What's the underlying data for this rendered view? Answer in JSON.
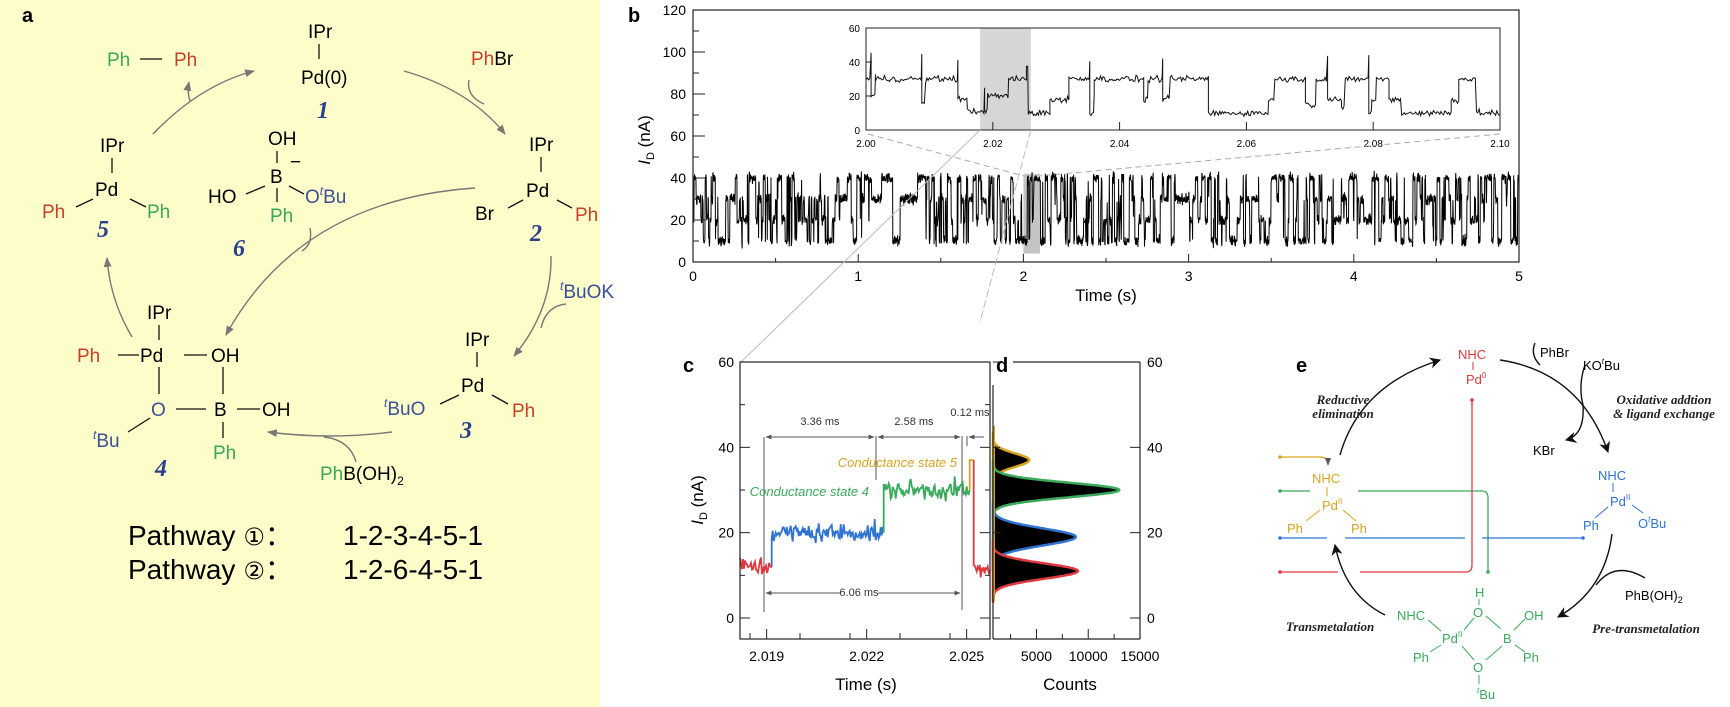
{
  "colors": {
    "panel_a_background": "#fdfdca",
    "ph_red": "#c8402a",
    "ph_green": "#3aa856",
    "tbu_blue": "#3a4f9a",
    "number_blue": "#2b3f8e",
    "state_red": "#e0393e",
    "state_blue": "#2f74d0",
    "state_green": "#3aaa5c",
    "state_gold": "#d9a520"
  },
  "panel_a": {
    "label": "a",
    "c1": {
      "ligand": "IPr",
      "metal": "Pd(0)",
      "number": "1"
    },
    "ph_ph": {
      "left": "Ph",
      "right": "Ph"
    },
    "phbr": {
      "ph": "Ph",
      "br": "Br"
    },
    "c2": {
      "ligand": "IPr",
      "metal": "Pd",
      "br": "Br",
      "ph": "Ph",
      "number": "2"
    },
    "tbuok": {
      "sup": "t",
      "text": "BuOK"
    },
    "c3": {
      "ligand": "IPr",
      "metal": "Pd",
      "tbuo_sup": "t",
      "tbuo": "BuO",
      "ph": "Ph",
      "number": "3"
    },
    "phboh2": {
      "ph": "Ph",
      "b": "B(OH)",
      "sub": "2"
    },
    "c4": {
      "ligand": "IPr",
      "ph": "Ph",
      "metal": "Pd",
      "oh1": "OH",
      "o": "O",
      "b": "B",
      "oh2": "OH",
      "tbu_sup": "t",
      "tbu": "Bu",
      "ph2": "Ph",
      "number": "4"
    },
    "c5": {
      "ligand": "IPr",
      "metal": "Pd",
      "ph_left": "Ph",
      "ph_right": "Ph",
      "number": "5"
    },
    "c6": {
      "oh": "OH",
      "b": "B",
      "charge": "−",
      "ho": "HO",
      "o": "O",
      "tbu_sup": "t",
      "tbu": "Bu",
      "ph": "Ph",
      "number": "6"
    },
    "pathways": [
      {
        "label": "Pathway",
        "circle": "①",
        "sep": "：",
        "route": "1-2-3-4-5-1"
      },
      {
        "label": "Pathway",
        "circle": "②",
        "sep": "：",
        "route": "1-2-6-4-5-1"
      }
    ]
  },
  "panel_b": {
    "label": "b"
  },
  "panel_c": {
    "label": "c",
    "durations": {
      "d1": "3.36 ms",
      "d2": "2.58 ms",
      "d3": "0.12 ms",
      "total": "6.06 ms"
    },
    "state4": "Conductance state 4",
    "state5": "Conductance state 5"
  },
  "panel_d": {
    "label": "d"
  },
  "panel_e": {
    "label": "e",
    "pd0": {
      "ligand": "NHC",
      "metal": "Pd",
      "ox": "0"
    },
    "blue": {
      "ligand": "NHC",
      "metal": "Pd",
      "ox": "II",
      "ph": "Ph",
      "o": "O",
      "sup": "t",
      "bu": "Bu"
    },
    "gold": {
      "ligand": "NHC",
      "metal": "Pd",
      "ox": "II",
      "ph1": "Ph",
      "ph2": "Ph"
    },
    "green": {
      "ligand": "NHC",
      "metal": "Pd",
      "ox": "II",
      "h": "H",
      "o1": "O",
      "b": "B",
      "oh": "OH",
      "ph1": "Ph",
      "ph2": "Ph",
      "o2": "O",
      "sup": "t",
      "bu": "Bu"
    },
    "reagents": {
      "phbr": "PhBr",
      "kotbu_k": "KO",
      "kotbu_sup": "t",
      "kotbu_bu": "Bu",
      "kbr": "KBr",
      "phboh2": "PhB(OH)",
      "phboh2_sub": "2"
    },
    "steps": {
      "reductive_1": "Reductive",
      "reductive_2": "elimination",
      "oxidative_1": "Oxidative addtion",
      "oxidative_2": "& ligand exchange",
      "transmetalation": "Transmetalation",
      "pre_transmetalation": "Pre-transmetalation"
    }
  },
  "chart_data": [
    {
      "id": "b-main",
      "type": "line",
      "xlabel": "Time (s)",
      "ylabel_main": "I",
      "ylabel_sub": "D",
      "ylabel_unit": " (nA)",
      "xlim": [
        0,
        5
      ],
      "ylim": [
        0,
        120
      ],
      "xticks": [
        "0",
        "1",
        "2",
        "3",
        "4",
        "5"
      ],
      "yticks": [
        "0",
        "20",
        "40",
        "60",
        "80",
        "100",
        "120"
      ],
      "current_levels_nA": [
        10,
        20,
        30,
        40
      ],
      "highlight_x": [
        2.0,
        2.1
      ],
      "grid": false
    },
    {
      "id": "b-inset",
      "type": "line",
      "xlim": [
        2.0,
        2.1
      ],
      "ylim": [
        0,
        60
      ],
      "xticks": [
        "2.00",
        "2.02",
        "2.04",
        "2.06",
        "2.08",
        "2.10"
      ],
      "yticks": [
        "0",
        "20",
        "40",
        "60"
      ],
      "highlight_x": [
        2.018,
        2.026
      ],
      "steps": [
        [
          2.0,
          30
        ],
        [
          2.0008,
          20
        ],
        [
          2.0015,
          30
        ],
        [
          2.0088,
          15
        ],
        [
          2.0094,
          30
        ],
        [
          2.0145,
          18
        ],
        [
          2.016,
          11
        ],
        [
          2.0187,
          12
        ],
        [
          2.0192,
          20
        ],
        [
          2.0225,
          30
        ],
        [
          2.0253,
          37
        ],
        [
          2.0256,
          10
        ],
        [
          2.029,
          18
        ],
        [
          2.032,
          30
        ],
        [
          2.0353,
          10
        ],
        [
          2.036,
          30
        ],
        [
          2.0438,
          18
        ],
        [
          2.0445,
          30
        ],
        [
          2.0468,
          18
        ],
        [
          2.048,
          30
        ],
        [
          2.054,
          10
        ],
        [
          2.0635,
          18
        ],
        [
          2.0645,
          30
        ],
        [
          2.0693,
          15
        ],
        [
          2.071,
          30
        ],
        [
          2.0728,
          18
        ],
        [
          2.075,
          12
        ],
        [
          2.0756,
          30
        ],
        [
          2.0793,
          10
        ],
        [
          2.0798,
          18
        ],
        [
          2.0805,
          30
        ],
        [
          2.0825,
          18
        ],
        [
          2.0845,
          10
        ],
        [
          2.0923,
          18
        ],
        [
          2.0935,
          30
        ],
        [
          2.0963,
          10
        ],
        [
          2.1,
          10
        ]
      ],
      "grid": false
    },
    {
      "id": "c",
      "type": "line",
      "xlabel": "Time (s)",
      "ylabel_main": "I",
      "ylabel_sub": "D",
      "ylabel_unit": " (nA)",
      "xlim": [
        2.0182,
        2.0257
      ],
      "ylim": [
        -5,
        60
      ],
      "xticks": [
        {
          "v": 2.019,
          "label": "2.019"
        },
        {
          "v": 2.022,
          "label": "2.022"
        },
        {
          "v": 2.025,
          "label": "2.025"
        }
      ],
      "yticks": [
        "0",
        "20",
        "40",
        "60"
      ],
      "segments": [
        {
          "from": 2.0182,
          "to": 2.01915,
          "level": 12,
          "color": "#e0393e"
        },
        {
          "from": 2.01915,
          "to": 2.02251,
          "level": 20,
          "color": "#2f74d0"
        },
        {
          "from": 2.02251,
          "to": 2.02509,
          "level": 30,
          "color": "#3aaa5c"
        },
        {
          "from": 2.02509,
          "to": 2.02521,
          "level": 37,
          "color": "#d9a520"
        },
        {
          "from": 2.02521,
          "to": 2.0257,
          "level": 11,
          "color": "#e0393e"
        }
      ],
      "grid": false
    },
    {
      "id": "d",
      "type": "area",
      "xlabel": "Counts",
      "xlim": [
        800,
        15000
      ],
      "ylim": [
        -5,
        60
      ],
      "xticks": [
        "5000",
        "10000",
        "15000"
      ],
      "yticks": [
        "0",
        "20",
        "40",
        "60"
      ],
      "peaks": [
        {
          "center_nA": 37,
          "counts": 4300,
          "width_nA": 1.6,
          "color": "#d9a520"
        },
        {
          "center_nA": 30,
          "counts": 13000,
          "width_nA": 1.7,
          "color": "#3aaa5c"
        },
        {
          "center_nA": 19,
          "counts": 8800,
          "width_nA": 2.0,
          "color": "#2f74d0"
        },
        {
          "center_nA": 11,
          "counts": 9000,
          "width_nA": 1.8,
          "color": "#e0393e"
        }
      ],
      "grid": false
    }
  ]
}
